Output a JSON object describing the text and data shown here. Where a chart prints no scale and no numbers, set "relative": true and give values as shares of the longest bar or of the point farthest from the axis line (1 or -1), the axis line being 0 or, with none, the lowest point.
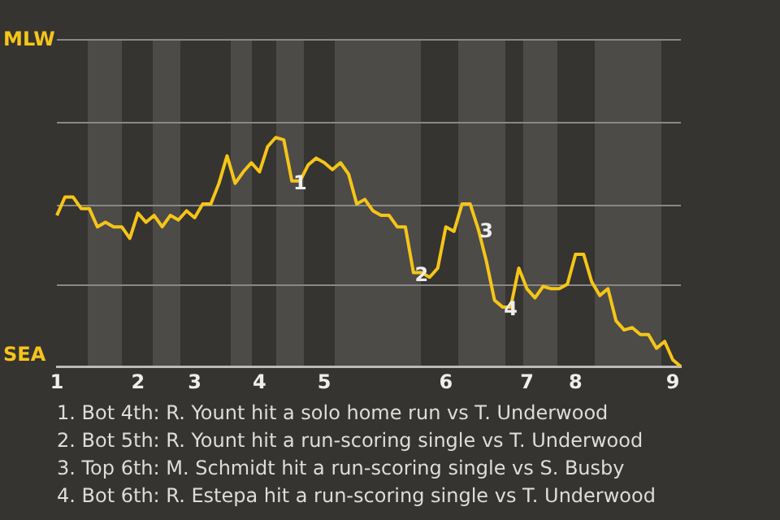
{
  "chart_data": {
    "type": "line",
    "relative": true,
    "categories": [
      "1",
      null,
      null,
      null,
      null,
      null,
      null,
      null,
      null,
      null,
      "2",
      null,
      null,
      null,
      null,
      null,
      null,
      "3",
      null,
      null,
      null,
      null,
      null,
      null,
      null,
      "4",
      null,
      null,
      null,
      null,
      null,
      null,
      null,
      "5",
      null,
      null,
      null,
      null,
      null,
      null,
      null,
      null,
      null,
      null,
      null,
      null,
      null,
      null,
      "6",
      null,
      null,
      null,
      null,
      null,
      null,
      null,
      null,
      null,
      "7",
      null,
      null,
      null,
      null,
      null,
      "8",
      null,
      null,
      null,
      null,
      null,
      null,
      null,
      null,
      null,
      null,
      null,
      "9",
      null
    ],
    "series": [
      {
        "color": "#f5c518",
        "values": [
          0.66,
          0.74,
          0.74,
          0.69,
          0.69,
          0.61,
          0.63,
          0.61,
          0.61,
          0.56,
          0.67,
          0.63,
          0.66,
          0.61,
          0.66,
          0.64,
          0.68,
          0.65,
          0.71,
          0.71,
          0.8,
          0.92,
          0.8,
          0.85,
          0.89,
          0.85,
          0.96,
          1,
          0.99,
          0.81,
          0.81,
          0.88,
          0.91,
          0.89,
          0.86,
          0.89,
          0.84,
          0.71,
          0.73,
          0.68,
          0.66,
          0.66,
          0.61,
          0.61,
          0.41,
          0.41,
          0.39,
          0.43,
          0.61,
          0.59,
          0.71,
          0.71,
          0.6,
          0.46,
          0.29,
          0.26,
          0.26,
          0.43,
          0.34,
          0.3,
          0.35,
          0.34,
          0.34,
          0.36,
          0.49,
          0.49,
          0.37,
          0.31,
          0.34,
          0.2,
          0.16,
          0.17,
          0.14,
          0.14,
          0.08,
          0.11,
          0.03,
          0
        ]
      }
    ],
    "marker": "none",
    "ref_lines": [
      {
        "axis": "y",
        "value": 0.36,
        "color": "#8a8886"
      },
      {
        "axis": "y",
        "value": 0.71,
        "color": "#8a8886"
      },
      {
        "axis": "y",
        "value": 1.07,
        "color": "#8a8886"
      },
      {
        "axis": "y",
        "value": 1.43,
        "color": "#8a8886"
      }
    ],
    "annotations": [
      {
        "text": "1",
        "y": 0.81
      },
      {
        "text": "2",
        "y": 0.41
      },
      {
        "text": "3",
        "y": 0.6
      },
      {
        "text": "4",
        "y": 0.26
      },
      "MLW",
      "SEA",
      "1. Bot 4th: R. Yount hit a solo home run vs T. Underwood",
      "2. Bot 5th: R. Yount hit a run-scoring single vs T. Underwood",
      "3. Top 6th: M. Schmidt hit a run-scoring single vs S. Busby",
      "4. Bot 6th: R. Estepa hit a run-scoring single vs T. Underwood"
    ]
  }
}
